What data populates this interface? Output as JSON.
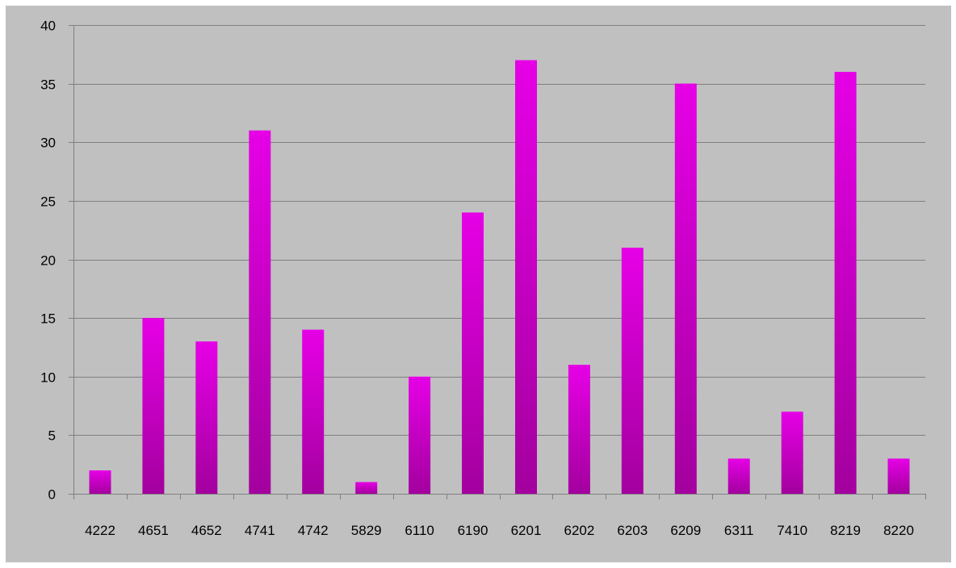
{
  "chart_data": {
    "type": "bar",
    "categories": [
      "4222",
      "4651",
      "4652",
      "4741",
      "4742",
      "5829",
      "6110",
      "6190",
      "6201",
      "6202",
      "6203",
      "6209",
      "6311",
      "7410",
      "8219",
      "8220"
    ],
    "values": [
      2,
      15,
      13,
      31,
      14,
      1,
      10,
      24,
      37,
      11,
      21,
      35,
      3,
      7,
      36,
      3
    ],
    "ylim": [
      0,
      40
    ],
    "yticks": [
      0,
      5,
      10,
      15,
      20,
      25,
      30,
      35,
      40
    ],
    "grid": true,
    "legend": "none",
    "colors": {
      "background": "#c0c0c0",
      "bar_top": "#e600e6",
      "bar_bottom": "#a3009e",
      "grid": "#808080",
      "axis": "#808080"
    }
  }
}
